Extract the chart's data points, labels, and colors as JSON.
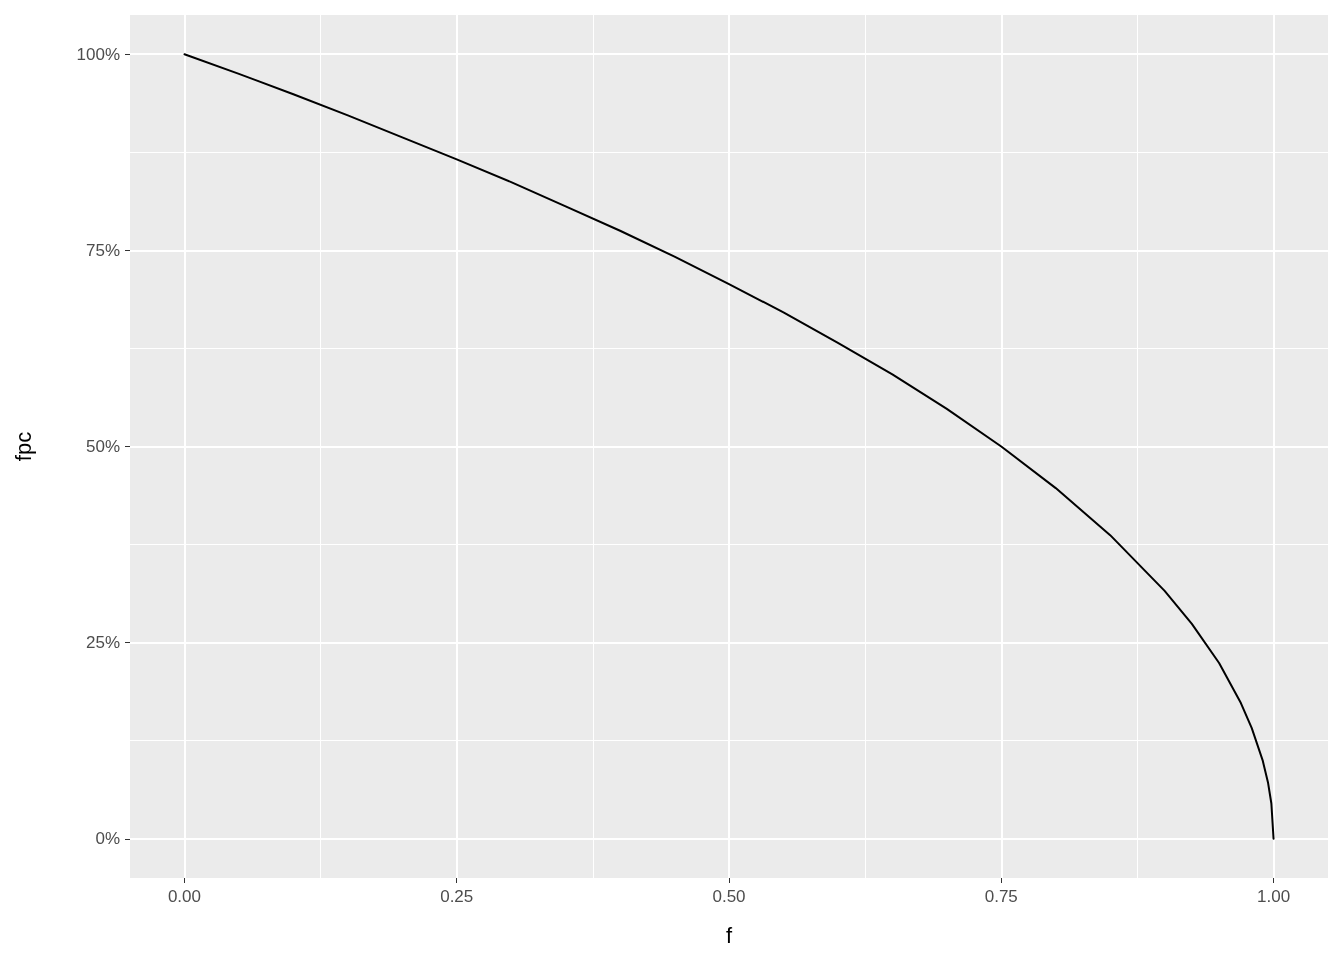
{
  "chart_data": {
    "type": "line",
    "xlabel": "f",
    "ylabel": "fpc",
    "x": [
      0,
      0.05,
      0.1,
      0.15,
      0.2,
      0.25,
      0.3,
      0.35,
      0.4,
      0.45,
      0.5,
      0.55,
      0.6,
      0.65,
      0.7,
      0.75,
      0.8,
      0.85,
      0.9,
      0.925,
      0.95,
      0.97,
      0.98,
      0.99,
      0.995,
      0.998,
      1
    ],
    "series": [
      {
        "color": "#000000",
        "values": [
          100,
          97.5,
          94.9,
          92.2,
          89.4,
          86.6,
          83.7,
          80.6,
          77.5,
          74.2,
          70.7,
          67.1,
          63.2,
          59.2,
          54.8,
          50,
          44.7,
          38.7,
          31.6,
          27.4,
          22.4,
          17.3,
          14.1,
          10,
          7.1,
          4.5,
          0
        ]
      }
    ],
    "xlim": [
      -0.05,
      1.05
    ],
    "xticks": [
      {
        "value": 0,
        "label": "0.00"
      },
      {
        "value": 0.25,
        "label": "0.25"
      },
      {
        "value": 0.5,
        "label": "0.50"
      },
      {
        "value": 0.75,
        "label": "0.75"
      },
      {
        "value": 1,
        "label": "1.00"
      }
    ],
    "ylim": [
      -5,
      105
    ],
    "yticks": [
      {
        "value": 0,
        "label": "0%"
      },
      {
        "value": 25,
        "label": "25%"
      },
      {
        "value": 50,
        "label": "50%"
      },
      {
        "value": 75,
        "label": "75%"
      },
      {
        "value": 100,
        "label": "100%"
      }
    ],
    "grid": true,
    "marker": "none",
    "line_style": "solid"
  }
}
